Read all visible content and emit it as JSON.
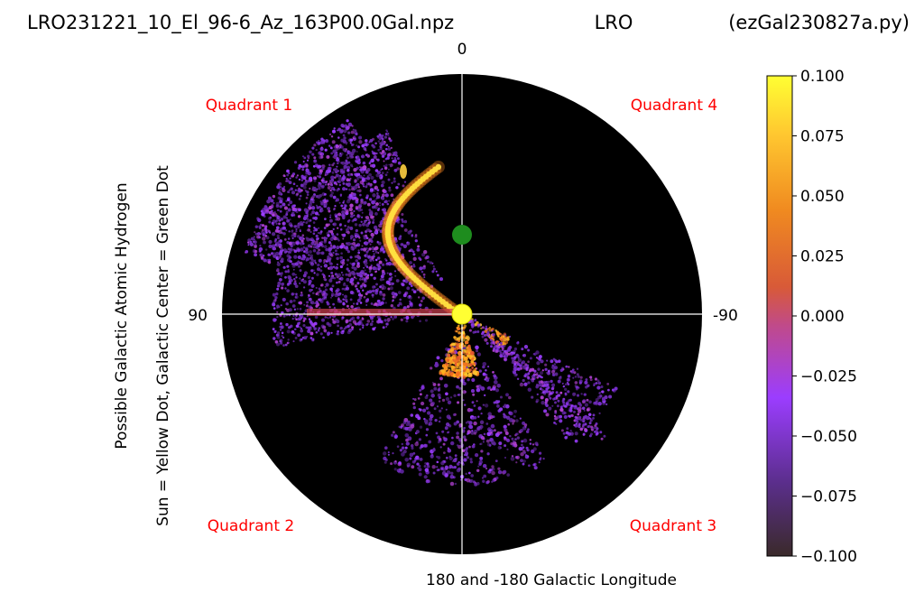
{
  "title": {
    "left": "LRO231221_10_El_96-6_Az_163P00.0Gal.npz",
    "center": "LRO",
    "right": "(ezGal230827a.py)"
  },
  "ylabel_line1": "Possible Galactic Atomic Hydrogen",
  "ylabel_line2": "Sun = Yellow Dot, Galactic Center = Green Dot",
  "xlabel": "180 and -180 Galactic Longitude",
  "direction_labels": {
    "top": "0",
    "left": "90",
    "right": "-90"
  },
  "quadrants": {
    "q1": "Quadrant 1",
    "q2": "Quadrant 2",
    "q3": "Quadrant 3",
    "q4": "Quadrant 4"
  },
  "colors": {
    "quadrant_text": "#ff0000",
    "plot_background": "#000000",
    "crosshair": "#ffffff",
    "sun": "#ffff33",
    "galactic_center": "#1e8c1e"
  },
  "chart_data": {
    "type": "heatmap",
    "projection": "polar",
    "colormap": "gnuplot",
    "colorbar": {
      "min": -0.1,
      "max": 0.1,
      "ticks": [
        "0.100",
        "0.075",
        "0.050",
        "0.025",
        "0.000",
        "−0.025",
        "−0.050",
        "−0.075",
        "−0.100"
      ]
    },
    "markers": [
      {
        "name": "Sun",
        "x": 0,
        "y": 0
      },
      {
        "name": "Galactic Center",
        "x": 0,
        "y": 8.5
      }
    ]
  }
}
